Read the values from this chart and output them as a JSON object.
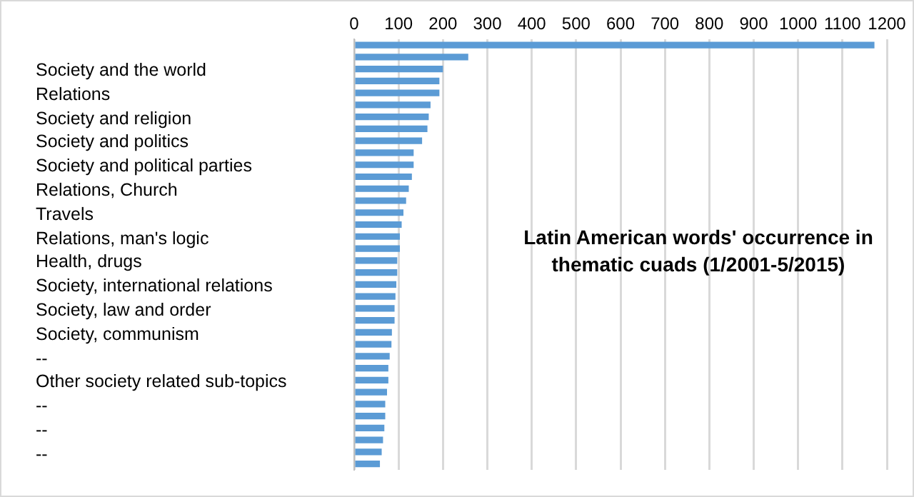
{
  "chart_data": {
    "type": "bar",
    "orientation": "horizontal",
    "title": "Latin American words' occurrence  in thematic cuads (1/2001-5/2015)",
    "categories": [
      null,
      null,
      null,
      null,
      null,
      null,
      null,
      null,
      null,
      null,
      null,
      null,
      null,
      null,
      null,
      null,
      null,
      null,
      null,
      null,
      null,
      null,
      null,
      null,
      null,
      null,
      null,
      null,
      null,
      null,
      null,
      null,
      null,
      null,
      null,
      null
    ],
    "series": [
      {
        "color": "#5b9bd5",
        "values": [
          1172,
          257,
          200,
          192,
          192,
          172,
          168,
          165,
          153,
          134,
          134,
          130,
          123,
          117,
          111,
          107,
          103,
          103,
          97,
          97,
          95,
          93,
          91,
          91,
          85,
          84,
          80,
          77,
          77,
          74,
          70,
          70,
          68,
          65,
          62,
          58
        ]
      }
    ],
    "xlim": [
      0,
      1200
    ],
    "xticks": [
      0,
      100,
      200,
      300,
      400,
      500,
      600,
      700,
      800,
      900,
      1000,
      1100,
      1200
    ],
    "grid": "x",
    "legend": false,
    "annotations": [
      "Society and the world",
      "Relations",
      "Society and religion",
      "Society and politics",
      "Society and political parties",
      "Relations, Church",
      "Travels",
      "Relations, man's logic",
      "Health, drugs",
      "Society, international relations",
      "Society, law and order",
      "Society, communism",
      "--",
      "Other society related sub-topics",
      "--",
      "--",
      "--"
    ]
  }
}
